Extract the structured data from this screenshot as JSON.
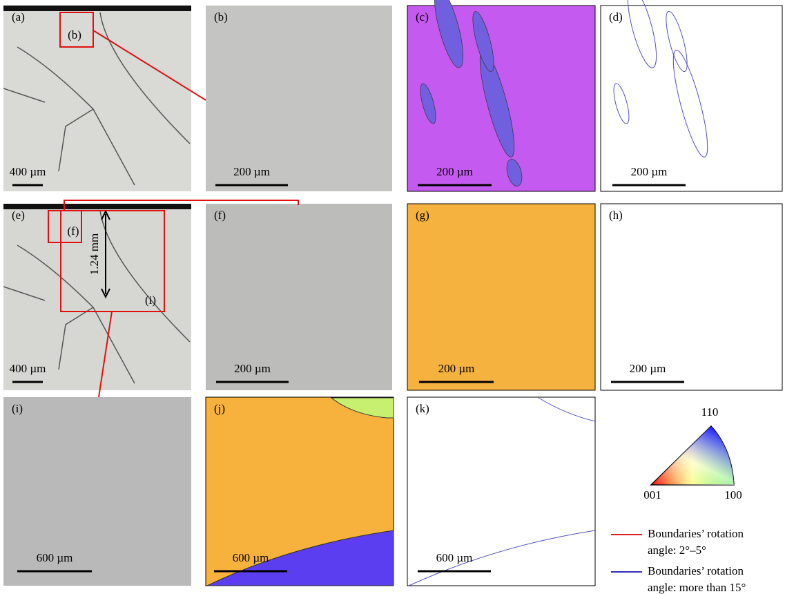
{
  "panels": [
    {
      "label": "(a)",
      "scale_bar": "400 µm"
    },
    {
      "label": "(b)",
      "scale_bar": "200 µm"
    },
    {
      "label": "(c)",
      "scale_bar": "200 µm"
    },
    {
      "label": "(d)",
      "scale_bar": "200 µm"
    },
    {
      "label": "(e)",
      "scale_bar": "400 µm"
    },
    {
      "label": "(f)",
      "scale_bar": "200 µm"
    },
    {
      "label": "(g)",
      "scale_bar": "200 µm"
    },
    {
      "label": "(h)",
      "scale_bar": "200 µm"
    },
    {
      "label": "(i)",
      "scale_bar": "600 µm"
    },
    {
      "label": "(j)",
      "scale_bar": "600 µm"
    },
    {
      "label": "(k)",
      "scale_bar": "600 µm"
    }
  ],
  "insets": [
    {
      "label": "(b)"
    },
    {
      "label": "(f)"
    },
    {
      "label": "(i)"
    }
  ],
  "annotation": "1.24 mm",
  "ipf_triangle": {
    "top": "110",
    "left": "001",
    "right": "100"
  },
  "legend": [
    {
      "color": "#e02020",
      "lines": [
        "Boundaries’ rotation",
        "angle: 2°–5°"
      ]
    },
    {
      "color": "#3030b8",
      "lines": [
        "Boundaries’ rotation",
        "angle: more than 15°"
      ]
    }
  ]
}
